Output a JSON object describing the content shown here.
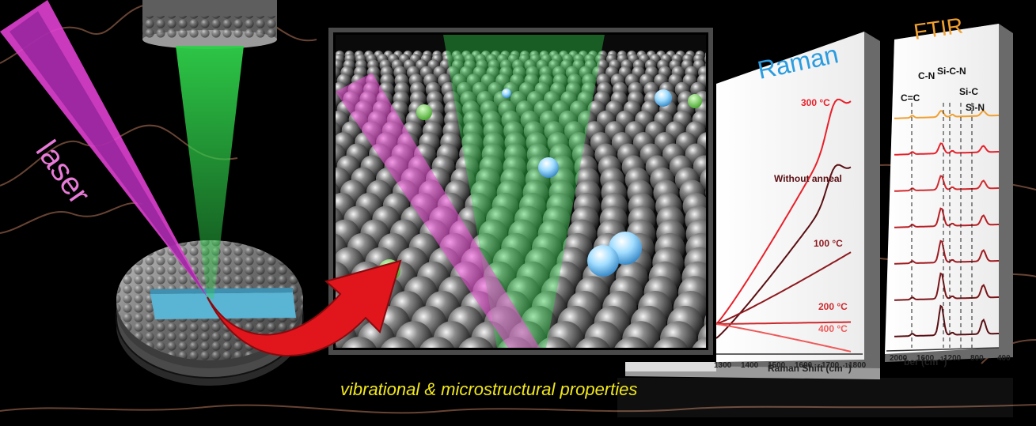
{
  "labels": {
    "laser": "laser",
    "caption": "vibrational & microstructural properties"
  },
  "raman": {
    "title": "Raman",
    "xlabel": "Raman Shift (cm",
    "xlabel_sup": "-1",
    "xlabel_close": ")",
    "ticks": [
      "1300",
      "1400",
      "1500",
      "1600",
      "1700",
      "1800"
    ],
    "series": [
      {
        "label": "300 °C",
        "color": "#e8202a",
        "level": 0.97
      },
      {
        "label": "Without anneal",
        "color": "#5a0f14",
        "level": 0.78
      },
      {
        "label": "100 °C",
        "color": "#8e1a1f",
        "level": 0.42
      },
      {
        "label": "200 °C",
        "color": "#cc2a2e",
        "level": 0.16
      },
      {
        "label": "400 °C",
        "color": "#ee5a5a",
        "level": 0.05
      }
    ]
  },
  "ftir": {
    "title": "FTIR",
    "xlabel": "ber (cm",
    "xlabel_sup": "-1",
    "xlabel_close": ")",
    "ticks": [
      "2000",
      "1600",
      "1200",
      "800",
      "400"
    ],
    "bond_labels": [
      "C=C",
      "C-N",
      "Si-C-N",
      "Si-C",
      "Si-N"
    ]
  },
  "colors": {
    "laser": "#e040d0",
    "probe_beam": "#2fd04a",
    "substrate": "#6ec8e8",
    "arrow": "#e0161c",
    "raman_title": "#2a9ce0",
    "ftir_title": "#f0a030",
    "caption": "#f2e81a"
  }
}
